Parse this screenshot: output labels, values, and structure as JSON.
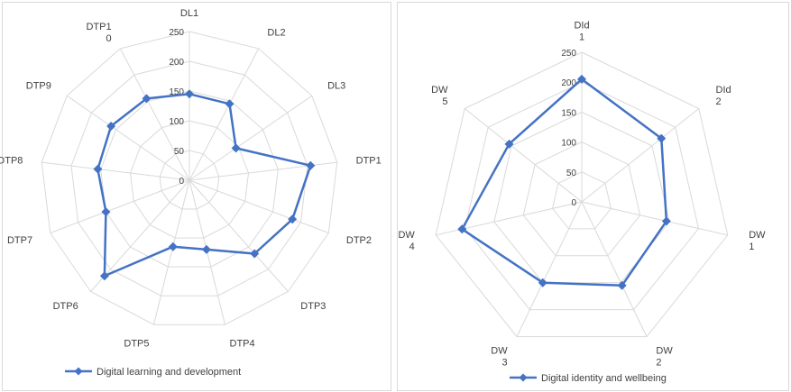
{
  "chart_data": [
    {
      "type": "radar",
      "categories": [
        "DL1",
        "DL2",
        "DL3",
        "DTP1",
        "DTP2",
        "DTP3",
        "DTP4",
        "DTP5",
        "DTP6",
        "DTP7",
        "DTP8",
        "DTP9",
        "DTP10"
      ],
      "category_label_lines": [
        [
          "DL1"
        ],
        [
          "DL2"
        ],
        [
          "DL3"
        ],
        [
          "DTP1"
        ],
        [
          "DTP2"
        ],
        [
          "DTP3"
        ],
        [
          "DTP4"
        ],
        [
          "DTP5"
        ],
        [
          "DTP6"
        ],
        [
          "DTP7"
        ],
        [
          "DTP8"
        ],
        [
          "DTP9"
        ],
        [
          "DTP1",
          "0"
        ]
      ],
      "series": [
        {
          "name": "Digital learning and development",
          "values": [
            145,
            145,
            95,
            205,
            185,
            165,
            120,
            115,
            215,
            150,
            155,
            160,
            155
          ]
        }
      ],
      "rlim": [
        0,
        250
      ],
      "ticks": [
        0,
        50,
        100,
        150,
        200,
        250
      ],
      "grid": true,
      "legend": "bottom",
      "series_color": "#4472c4",
      "grid_color": "#d9d9d9"
    },
    {
      "type": "radar",
      "categories": [
        "DId 1",
        "DId 2",
        "DW 1",
        "DW 2",
        "DW 3",
        "DW 4",
        "DW 5"
      ],
      "category_label_lines": [
        [
          "DId",
          "1"
        ],
        [
          "DId",
          "2"
        ],
        [
          "DW",
          "1"
        ],
        [
          "DW",
          "2"
        ],
        [
          "DW",
          "3"
        ],
        [
          "DW",
          "4"
        ],
        [
          "DW",
          "5"
        ]
      ],
      "series": [
        {
          "name": "Digital identity and wellbeing",
          "values": [
            205,
            170,
            145,
            155,
            150,
            205,
            155
          ]
        }
      ],
      "rlim": [
        0,
        250
      ],
      "ticks": [
        0,
        50,
        100,
        150,
        200,
        250
      ],
      "grid": true,
      "legend": "bottom",
      "series_color": "#4472c4",
      "grid_color": "#d9d9d9"
    }
  ]
}
